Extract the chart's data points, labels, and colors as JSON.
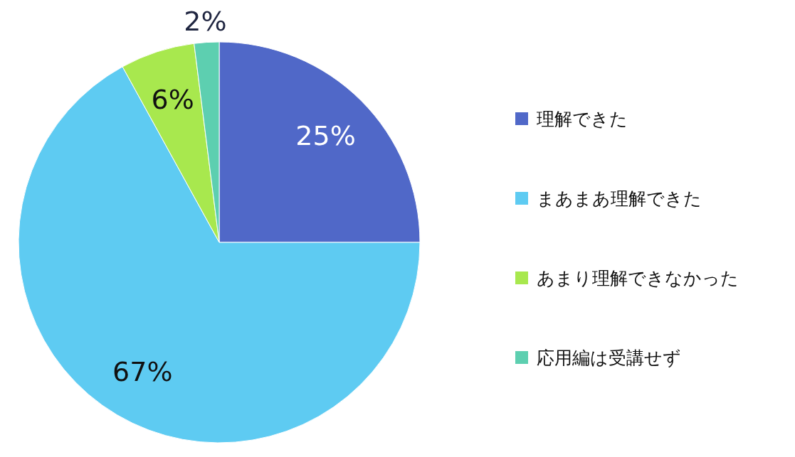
{
  "chart_data": {
    "type": "pie",
    "categories": [
      "理解できた",
      "まあまあ理解できた",
      "あまり理解できなかった",
      "応用編は受講せず"
    ],
    "values": [
      25,
      67,
      6,
      2
    ],
    "colors": [
      "#5068c8",
      "#5ecbf2",
      "#a8e84e",
      "#5dcfb0"
    ],
    "value_labels": [
      "25%",
      "67%",
      "6%",
      "2%"
    ],
    "legend": "right"
  }
}
